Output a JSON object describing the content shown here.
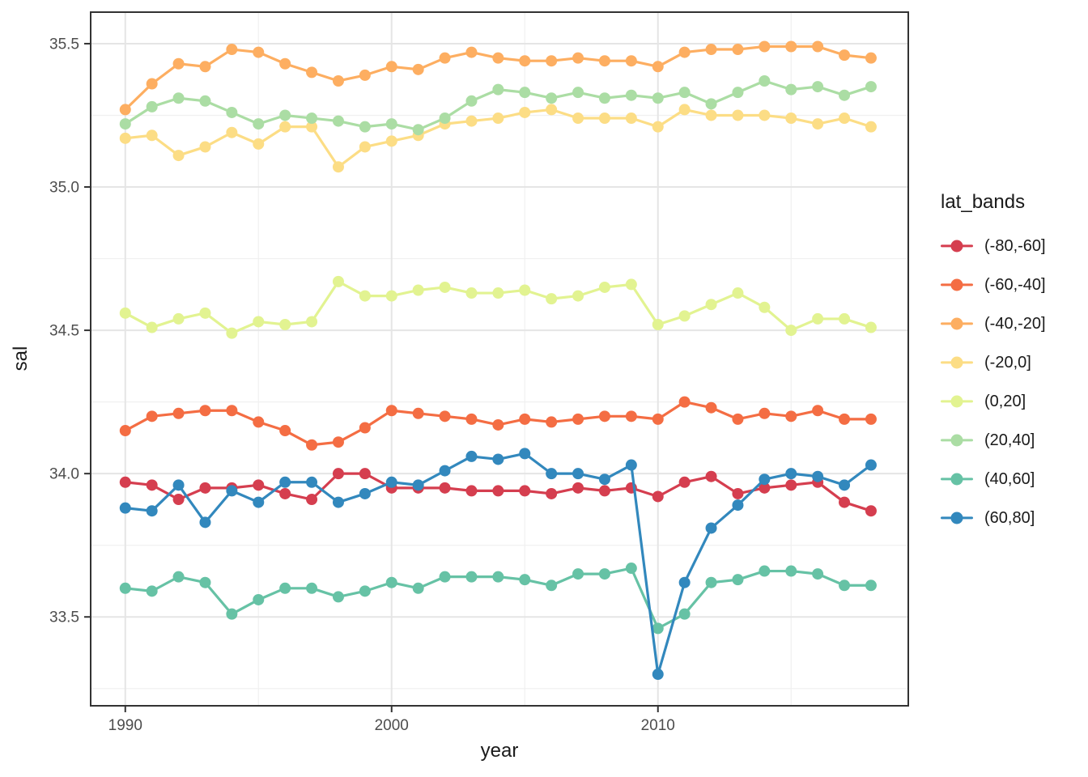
{
  "figure": {
    "background": "#ffffff",
    "x_axis_title": "year",
    "y_axis_title": "sal",
    "legend_title": "lat_bands"
  },
  "style": {
    "panel_border": "#333333",
    "grid_major": "#e5e5e5",
    "grid_minor": "#f0f0f0",
    "tick_color": "#333333",
    "tick_label_color": "#4d4d4d",
    "axis_title_color": "#1a1a1a",
    "legend_text_color": "#1a1a1a",
    "point_radius": 7,
    "line_width": 3.2
  },
  "chart_data": {
    "type": "line",
    "title": "",
    "xlabel": "year",
    "ylabel": "sal",
    "legend_title": "lat_bands",
    "legend_position": "right",
    "grid": true,
    "xlim": [
      1988.7,
      2019.4
    ],
    "ylim": [
      33.19,
      35.61
    ],
    "x_major_ticks": [
      1990,
      2000,
      2010
    ],
    "x_tick_labels": [
      "1990",
      "2000",
      "2010"
    ],
    "x_minor_gridlines": [
      1995,
      2005,
      2015
    ],
    "y_major_ticks": [
      33.5,
      34.0,
      34.5,
      35.0,
      35.5
    ],
    "y_tick_labels": [
      "33.5",
      "34.0",
      "34.5",
      "35.0",
      "35.5"
    ],
    "y_minor_gridlines": [
      33.25,
      33.75,
      34.25,
      34.75,
      35.25
    ],
    "x": [
      1990,
      1991,
      1992,
      1993,
      1994,
      1995,
      1996,
      1997,
      1998,
      1999,
      2000,
      2001,
      2002,
      2003,
      2004,
      2005,
      2006,
      2007,
      2008,
      2009,
      2010,
      2011,
      2012,
      2013,
      2014,
      2015,
      2016,
      2017,
      2018
    ],
    "series": [
      {
        "name": "(-80,-60]",
        "color": "#d53e4f",
        "values": [
          33.97,
          33.96,
          33.91,
          33.95,
          33.95,
          33.96,
          33.93,
          33.91,
          34.0,
          34.0,
          33.95,
          33.95,
          33.95,
          33.94,
          33.94,
          33.94,
          33.93,
          33.95,
          33.94,
          33.95,
          33.92,
          33.97,
          33.99,
          33.93,
          33.95,
          33.96,
          33.97,
          33.9,
          33.87
        ]
      },
      {
        "name": "(-60,-40]",
        "color": "#f46d43",
        "values": [
          34.15,
          34.2,
          34.21,
          34.22,
          34.22,
          34.18,
          34.15,
          34.1,
          34.11,
          34.16,
          34.22,
          34.21,
          34.2,
          34.19,
          34.17,
          34.19,
          34.18,
          34.19,
          34.2,
          34.2,
          34.19,
          34.25,
          34.23,
          34.19,
          34.21,
          34.2,
          34.22,
          34.19,
          34.19
        ]
      },
      {
        "name": "(-40,-20]",
        "color": "#fdae61",
        "values": [
          35.27,
          35.36,
          35.43,
          35.42,
          35.48,
          35.47,
          35.43,
          35.4,
          35.37,
          35.39,
          35.42,
          35.41,
          35.45,
          35.47,
          35.45,
          35.44,
          35.44,
          35.45,
          35.44,
          35.44,
          35.42,
          35.47,
          35.48,
          35.48,
          35.49,
          35.49,
          35.49,
          35.46,
          35.45
        ]
      },
      {
        "name": "(-20,0]",
        "color": "#fcdd85",
        "values": [
          35.17,
          35.18,
          35.11,
          35.14,
          35.19,
          35.15,
          35.21,
          35.21,
          35.07,
          35.14,
          35.16,
          35.18,
          35.22,
          35.23,
          35.24,
          35.26,
          35.27,
          35.24,
          35.24,
          35.24,
          35.21,
          35.27,
          35.25,
          35.25,
          35.25,
          35.24,
          35.22,
          35.24,
          35.21
        ]
      },
      {
        "name": "(0,20]",
        "color": "#e2f391",
        "values": [
          34.56,
          34.51,
          34.54,
          34.56,
          34.49,
          34.53,
          34.52,
          34.53,
          34.67,
          34.62,
          34.62,
          34.64,
          34.65,
          34.63,
          34.63,
          34.64,
          34.61,
          34.62,
          34.65,
          34.66,
          34.52,
          34.55,
          34.59,
          34.63,
          34.58,
          34.5,
          34.54,
          34.54,
          34.51
        ]
      },
      {
        "name": "(20,40]",
        "color": "#abdda4",
        "values": [
          35.22,
          35.28,
          35.31,
          35.3,
          35.26,
          35.22,
          35.25,
          35.24,
          35.23,
          35.21,
          35.22,
          35.2,
          35.24,
          35.3,
          35.34,
          35.33,
          35.31,
          35.33,
          35.31,
          35.32,
          35.31,
          35.33,
          35.29,
          35.33,
          35.37,
          35.34,
          35.35,
          35.32,
          35.35
        ]
      },
      {
        "name": "(40,60]",
        "color": "#66c2a5",
        "values": [
          33.6,
          33.59,
          33.64,
          33.62,
          33.51,
          33.56,
          33.6,
          33.6,
          33.57,
          33.59,
          33.62,
          33.6,
          33.64,
          33.64,
          33.64,
          33.63,
          33.61,
          33.65,
          33.65,
          33.67,
          33.46,
          33.51,
          33.62,
          33.63,
          33.66,
          33.66,
          33.65,
          33.61,
          33.61
        ]
      },
      {
        "name": "(60,80]",
        "color": "#3288bd",
        "values": [
          33.88,
          33.87,
          33.96,
          33.83,
          33.94,
          33.9,
          33.97,
          33.97,
          33.9,
          33.93,
          33.97,
          33.96,
          34.01,
          34.06,
          34.05,
          34.07,
          34.0,
          34.0,
          33.98,
          34.03,
          33.3,
          33.62,
          33.81,
          33.89,
          33.98,
          34.0,
          33.99,
          33.96,
          34.03
        ]
      }
    ]
  }
}
